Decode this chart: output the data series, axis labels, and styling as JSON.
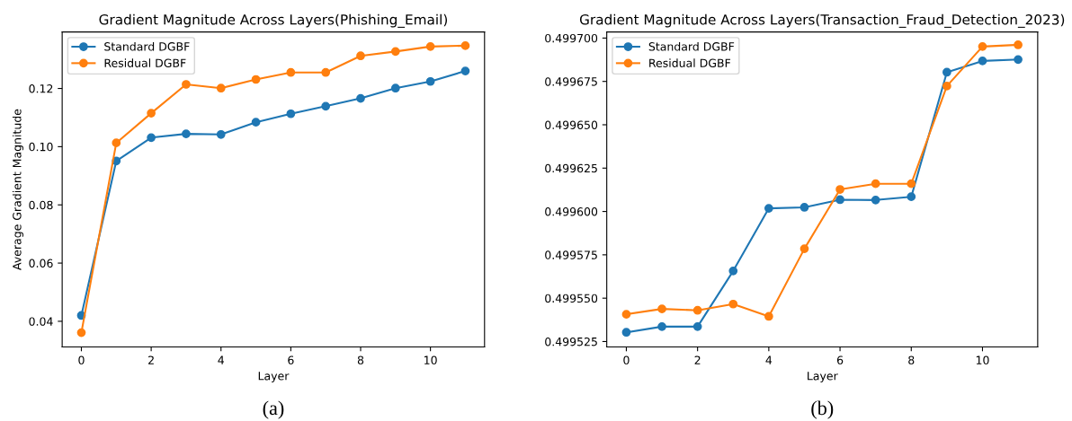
{
  "chart_data": [
    {
      "type": "line",
      "title": "Gradient Magnitude Across Layers(Phishing_Email)",
      "xlabel": "Layer",
      "ylabel": "Average Gradient Magnitude",
      "x": [
        0,
        1,
        2,
        3,
        4,
        5,
        6,
        7,
        8,
        9,
        10,
        11
      ],
      "series": [
        {
          "name": "Standard DGBF",
          "color": "#1f77b4",
          "values": [
            0.042,
            0.0951,
            0.1031,
            0.1044,
            0.1042,
            0.1084,
            0.1113,
            0.1139,
            0.1166,
            0.1201,
            0.1224,
            0.126
          ]
        },
        {
          "name": "Residual DGBF",
          "color": "#ff7f0e",
          "values": [
            0.0361,
            0.1013,
            0.1115,
            0.1214,
            0.1201,
            0.1231,
            0.1255,
            0.1255,
            0.1312,
            0.1327,
            0.1344,
            0.1347
          ]
        }
      ],
      "xlim": [
        -0.55,
        11.55
      ],
      "xticks": [
        0,
        2,
        4,
        6,
        8,
        10
      ],
      "ylim": [
        0.0312,
        0.1394
      ],
      "yticks": [
        0.04,
        0.06,
        0.08,
        {
          "value": 0.1,
          "label": "0.10"
        },
        0.12
      ],
      "marker": "circle",
      "line_style": "solid",
      "legend": "top left",
      "grid": false,
      "annotations": [
        "(a)"
      ]
    },
    {
      "type": "line",
      "title": "Gradient Magnitude Across Layers(Transaction_Fraud_Detection_2023)",
      "xlabel": "Layer",
      "x": [
        0,
        1,
        2,
        3,
        4,
        5,
        6,
        7,
        8,
        9,
        10,
        11
      ],
      "series": [
        {
          "name": "Standard DGBF",
          "color": "#1f77b4",
          "values": [
            0.4995303,
            0.4995336,
            0.4995336,
            0.4995657,
            0.4996018,
            0.4996024,
            0.4996068,
            0.4996066,
            0.4996085,
            0.4996803,
            0.4996868,
            0.4996876
          ]
        },
        {
          "name": "Residual DGBF",
          "color": "#ff7f0e",
          "values": [
            0.4995407,
            0.4995438,
            0.499543,
            0.4995466,
            0.4995395,
            0.4995785,
            0.4996127,
            0.499616,
            0.499616,
            0.4996723,
            0.4996951,
            0.4996961
          ]
        }
      ],
      "xlim": [
        -0.55,
        11.55
      ],
      "xticks": [
        0,
        2,
        4,
        6,
        8,
        10
      ],
      "ylim": [
        0.4995219,
        0.4997035
      ],
      "yticks": [
        0.499525,
        {
          "value": 0.49955,
          "label": "0.499550"
        },
        0.499575,
        {
          "value": 0.4996,
          "label": "0.499600"
        },
        0.499625,
        {
          "value": 0.49965,
          "label": "0.499650"
        },
        0.499675,
        {
          "value": 0.4997,
          "label": "0.499700"
        }
      ],
      "marker": "circle",
      "line_style": "solid",
      "legend": "top left",
      "grid": false,
      "annotations": [
        "(b)"
      ]
    }
  ]
}
